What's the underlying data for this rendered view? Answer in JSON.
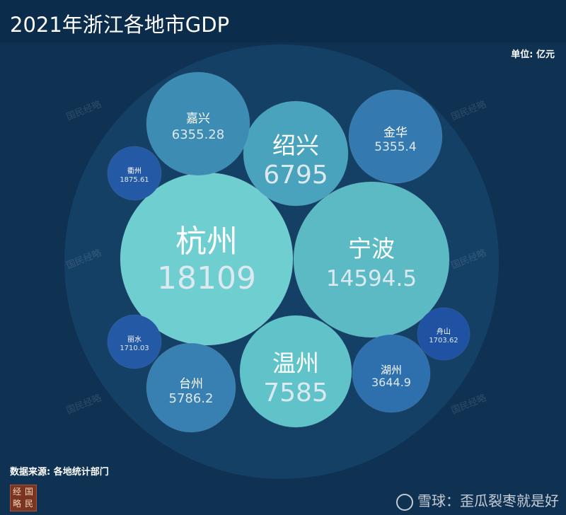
{
  "title": "2021年浙江各地市GDP",
  "unit_label": "单位: 亿元",
  "source_label": "数据来源: 各地统计部门",
  "watermark_text": "国民经略",
  "logo_chars": [
    "经",
    "国",
    "略",
    "民"
  ],
  "footer_watermark": "雪球：歪瓜裂枣就是好",
  "chart_data": {
    "type": "bubble",
    "title": "2021年浙江各地市GDP",
    "unit": "亿元",
    "source": "各地统计部门",
    "categories": [
      "杭州",
      "宁波",
      "温州",
      "绍兴",
      "嘉兴",
      "台州",
      "金华",
      "湖州",
      "衢州",
      "丽水",
      "舟山"
    ],
    "values": [
      "18109",
      "14594.5",
      "7585",
      "6795",
      "6355.28",
      "5786.2",
      "5355.4",
      "3644.9",
      "1875.61",
      "1710.03",
      "1703.62"
    ],
    "colors": [
      "#6fcfd0",
      "#5bbac4",
      "#5fc3c9",
      "#4aa3bd",
      "#3d8cb4",
      "#3880b1",
      "#347ab0",
      "#2e6fad",
      "#2459a6",
      "#2459a6",
      "#1f52a2"
    ]
  }
}
